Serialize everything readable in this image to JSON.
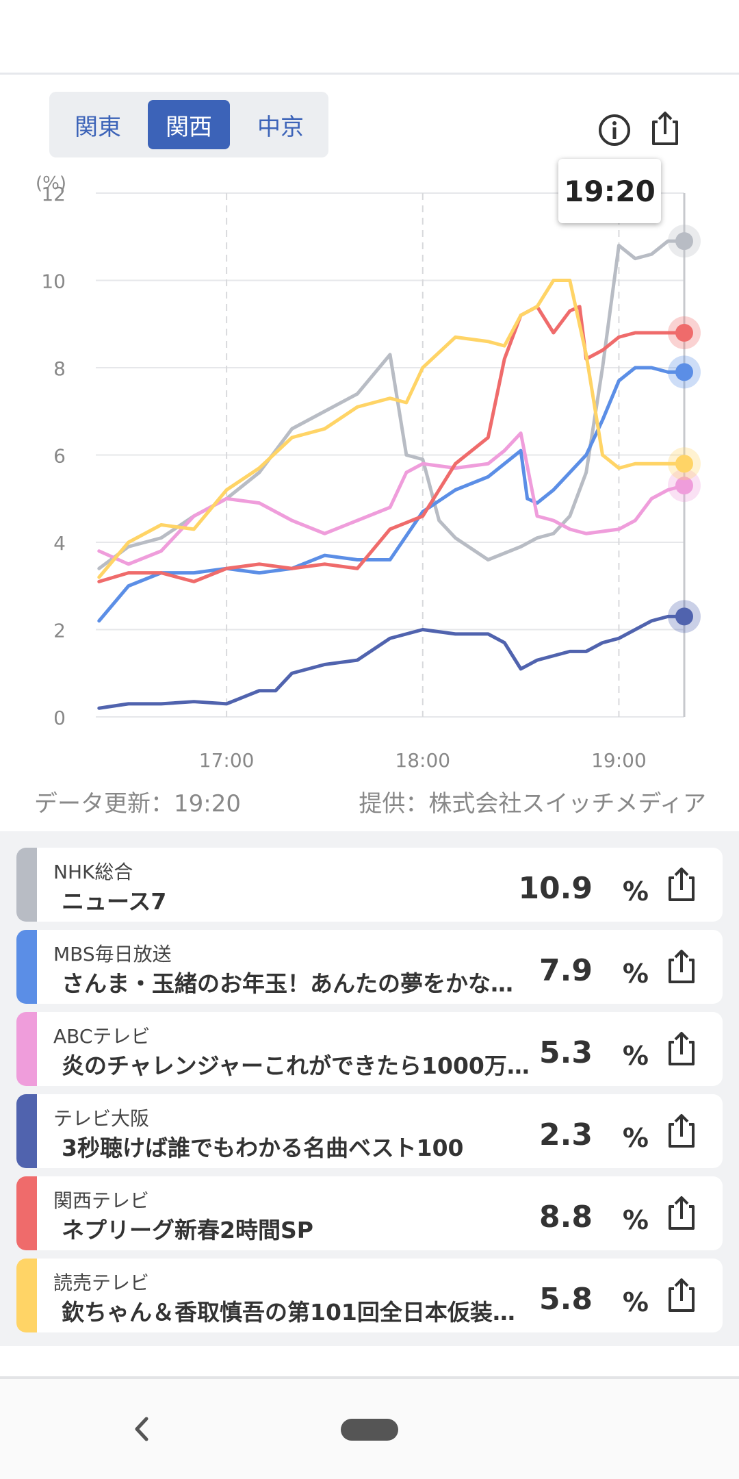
{
  "region_tabs": {
    "kanto": "関東",
    "kansai": "関西",
    "chukyo": "中京",
    "selected": "関西"
  },
  "chart_data": {
    "type": "line",
    "ylabel": "(%)",
    "ylim": [
      0,
      12
    ],
    "y_ticks": [
      "0",
      "2",
      "4",
      "6",
      "8",
      "10",
      "12"
    ],
    "x_ticks": [
      "17:00",
      "18:00",
      "19:00"
    ],
    "xlim_minutes": [
      980,
      1160
    ],
    "tooltip_time": "19:20",
    "grid": true,
    "colors": {
      "nhk": "#b8bcc4",
      "mbs": "#5b8ee6",
      "abc": "#ef9ddb",
      "tvo": "#5063ae",
      "ktv": "#ef6b6b",
      "ytv": "#ffd466"
    },
    "series": [
      {
        "name": "NHK総合",
        "color": "#b8bcc4",
        "x": [
          981,
          990,
          1000,
          1010,
          1020,
          1030,
          1040,
          1050,
          1060,
          1070,
          1075,
          1080,
          1085,
          1090,
          1100,
          1110,
          1115,
          1120,
          1125,
          1130,
          1135,
          1140,
          1145,
          1150,
          1155,
          1160
        ],
        "y": [
          3.4,
          3.9,
          4.1,
          4.6,
          5.0,
          5.6,
          6.6,
          7.0,
          7.4,
          8.3,
          6.0,
          5.9,
          4.5,
          4.1,
          3.6,
          3.9,
          4.1,
          4.2,
          4.6,
          5.6,
          8.0,
          10.8,
          10.5,
          10.6,
          10.9,
          10.9
        ]
      },
      {
        "name": "MBS毎日放送",
        "color": "#5b8ee6",
        "x": [
          981,
          990,
          1000,
          1010,
          1020,
          1030,
          1040,
          1050,
          1060,
          1070,
          1080,
          1090,
          1100,
          1110,
          1112,
          1115,
          1120,
          1125,
          1130,
          1135,
          1140,
          1145,
          1150,
          1155,
          1160
        ],
        "y": [
          2.2,
          3.0,
          3.3,
          3.3,
          3.4,
          3.3,
          3.4,
          3.7,
          3.6,
          3.6,
          4.7,
          5.2,
          5.5,
          6.1,
          5.0,
          4.9,
          5.2,
          5.6,
          6.0,
          6.8,
          7.7,
          8.0,
          8.0,
          7.9,
          7.9
        ]
      },
      {
        "name": "ABCテレビ",
        "color": "#ef9ddb",
        "x": [
          981,
          990,
          1000,
          1010,
          1020,
          1030,
          1040,
          1050,
          1060,
          1070,
          1075,
          1080,
          1090,
          1100,
          1105,
          1110,
          1115,
          1120,
          1125,
          1130,
          1140,
          1145,
          1150,
          1155,
          1160
        ],
        "y": [
          3.8,
          3.5,
          3.8,
          4.6,
          5.0,
          4.9,
          4.5,
          4.2,
          4.5,
          4.8,
          5.6,
          5.8,
          5.7,
          5.8,
          6.1,
          6.5,
          4.6,
          4.5,
          4.3,
          4.2,
          4.3,
          4.5,
          5.0,
          5.2,
          5.3
        ]
      },
      {
        "name": "テレビ大阪",
        "color": "#5063ae",
        "x": [
          981,
          990,
          1000,
          1010,
          1020,
          1030,
          1035,
          1040,
          1050,
          1060,
          1070,
          1075,
          1080,
          1090,
          1100,
          1105,
          1110,
          1115,
          1120,
          1125,
          1130,
          1135,
          1140,
          1145,
          1150,
          1155,
          1160
        ],
        "y": [
          0.2,
          0.3,
          0.3,
          0.35,
          0.3,
          0.6,
          0.6,
          1.0,
          1.2,
          1.3,
          1.8,
          1.9,
          2.0,
          1.9,
          1.9,
          1.7,
          1.1,
          1.3,
          1.4,
          1.5,
          1.5,
          1.7,
          1.8,
          2.0,
          2.2,
          2.3,
          2.3
        ]
      },
      {
        "name": "関西テレビ",
        "color": "#ef6b6b",
        "x": [
          981,
          990,
          1000,
          1010,
          1020,
          1030,
          1040,
          1050,
          1060,
          1070,
          1080,
          1090,
          1100,
          1105,
          1110,
          1115,
          1120,
          1125,
          1128,
          1130,
          1135,
          1140,
          1145,
          1150,
          1155,
          1160
        ],
        "y": [
          3.1,
          3.3,
          3.3,
          3.1,
          3.4,
          3.5,
          3.4,
          3.5,
          3.4,
          4.3,
          4.6,
          5.8,
          6.4,
          8.2,
          9.2,
          9.4,
          8.8,
          9.3,
          9.4,
          8.2,
          8.4,
          8.7,
          8.8,
          8.8,
          8.8,
          8.8
        ]
      },
      {
        "name": "読売テレビ",
        "color": "#ffd466",
        "x": [
          981,
          990,
          1000,
          1010,
          1020,
          1030,
          1040,
          1050,
          1060,
          1070,
          1075,
          1080,
          1090,
          1100,
          1105,
          1110,
          1115,
          1120,
          1125,
          1130,
          1135,
          1140,
          1145,
          1150,
          1155,
          1160
        ],
        "y": [
          3.2,
          4.0,
          4.4,
          4.3,
          5.2,
          5.7,
          6.4,
          6.6,
          7.1,
          7.3,
          7.2,
          8.0,
          8.7,
          8.6,
          8.5,
          9.2,
          9.4,
          10.0,
          10.0,
          8.3,
          6.0,
          5.7,
          5.8,
          5.8,
          5.8,
          5.8
        ]
      }
    ]
  },
  "data_updated": "データ更新：19:20",
  "provider": "提供：株式会社スイッチメディア",
  "channels": [
    {
      "station": "NHK総合",
      "program": "ニュース7",
      "rating": "10.9",
      "unit": "%",
      "color": "#b8bcc4"
    },
    {
      "station": "MBS毎日放送",
      "program": "さんま・玉緒のお年玉！あんたの夢をかな…",
      "rating": "7.9",
      "unit": "%",
      "color": "#5b8ee6"
    },
    {
      "station": "ABCテレビ",
      "program": "炎のチャレンジャーこれができたら1000万…",
      "rating": "5.3",
      "unit": "%",
      "color": "#ef9ddb"
    },
    {
      "station": "テレビ大阪",
      "program": "3秒聴けば誰でもわかる名曲ベスト100",
      "rating": "2.3",
      "unit": "%",
      "color": "#5063ae"
    },
    {
      "station": "関西テレビ",
      "program": "ネプリーグ新春2時間SP",
      "rating": "8.8",
      "unit": "%",
      "color": "#ef6b6b"
    },
    {
      "station": "読売テレビ",
      "program": "欽ちゃん＆香取慎吾の第101回全日本仮装…",
      "rating": "5.8",
      "unit": "%",
      "color": "#ffd466"
    }
  ],
  "icons": {
    "info": "info-icon",
    "share": "share-icon",
    "back": "back-icon",
    "home": "home-pill-icon"
  }
}
